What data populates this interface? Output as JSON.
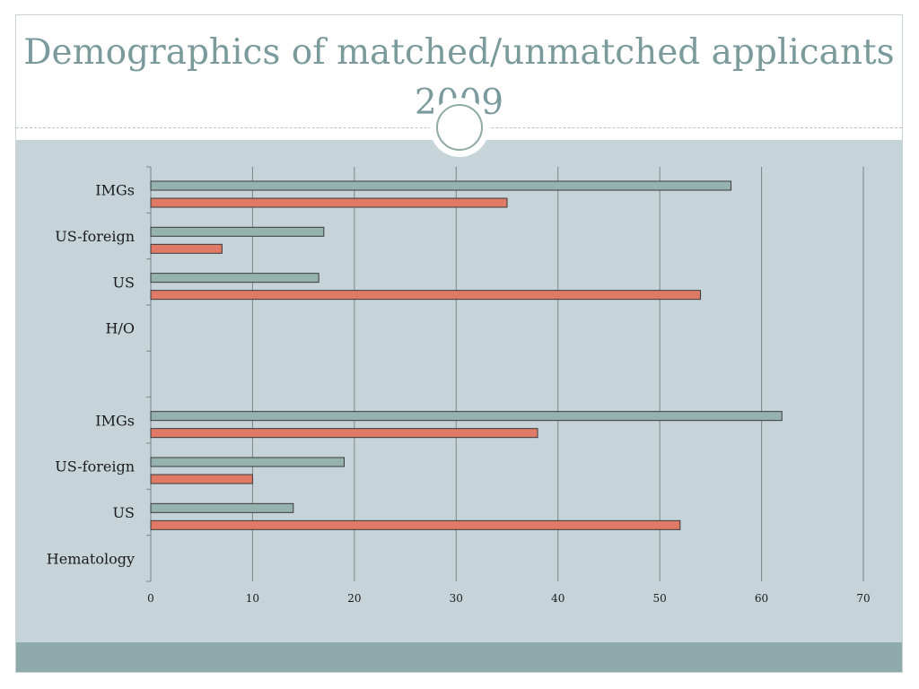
{
  "title": "Demographics of matched/unmatched applicants 2009",
  "colors": {
    "title": "#7a9a9c",
    "background": "#c6d4da",
    "footer": "#8eaaab",
    "series_matched": "#95b2ae",
    "series_unmatched": "#e07a66",
    "gridline": "#7c8585"
  },
  "chart_data": {
    "type": "bar",
    "orientation": "horizontal",
    "categories": [
      "IMGs",
      "US-foreign",
      "US",
      "H/O",
      "",
      "IMGs",
      "US-foreign",
      "US",
      "Hematology"
    ],
    "series": [
      {
        "values": [
          57,
          17,
          16.5,
          null,
          null,
          62,
          19,
          14,
          null
        ]
      },
      {
        "values": [
          35,
          7,
          54,
          null,
          null,
          38,
          10,
          52,
          null
        ]
      }
    ],
    "xlim": [
      0,
      70
    ],
    "x_ticks": [
      "0",
      "10",
      "20",
      "30",
      "40",
      "50",
      "60",
      "70"
    ],
    "grid": true,
    "legend": "none"
  }
}
